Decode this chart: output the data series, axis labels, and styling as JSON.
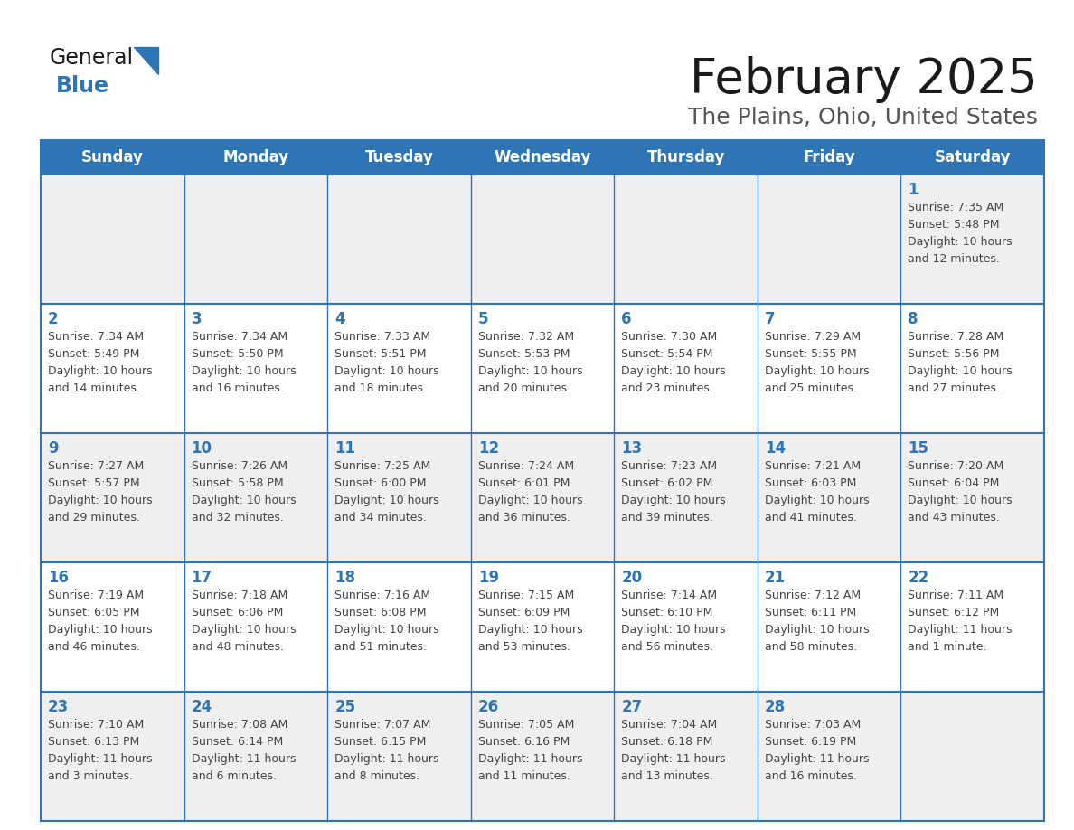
{
  "title": "February 2025",
  "subtitle": "The Plains, Ohio, United States",
  "header_bg": "#2E75B6",
  "header_text_color": "#FFFFFF",
  "cell_bg_light": "#EFEFEF",
  "cell_bg_white": "#FFFFFF",
  "border_color": "#2E75B6",
  "day_headers": [
    "Sunday",
    "Monday",
    "Tuesday",
    "Wednesday",
    "Thursday",
    "Friday",
    "Saturday"
  ],
  "title_color": "#1a1a1a",
  "subtitle_color": "#555555",
  "day_num_color": "#2E75B6",
  "cell_text_color": "#444444",
  "logo_general_color": "#1a1a1a",
  "logo_blue_color": "#2E75B6",
  "weeks": [
    [
      {
        "day": "",
        "info": ""
      },
      {
        "day": "",
        "info": ""
      },
      {
        "day": "",
        "info": ""
      },
      {
        "day": "",
        "info": ""
      },
      {
        "day": "",
        "info": ""
      },
      {
        "day": "",
        "info": ""
      },
      {
        "day": "1",
        "info": "Sunrise: 7:35 AM\nSunset: 5:48 PM\nDaylight: 10 hours\nand 12 minutes."
      }
    ],
    [
      {
        "day": "2",
        "info": "Sunrise: 7:34 AM\nSunset: 5:49 PM\nDaylight: 10 hours\nand 14 minutes."
      },
      {
        "day": "3",
        "info": "Sunrise: 7:34 AM\nSunset: 5:50 PM\nDaylight: 10 hours\nand 16 minutes."
      },
      {
        "day": "4",
        "info": "Sunrise: 7:33 AM\nSunset: 5:51 PM\nDaylight: 10 hours\nand 18 minutes."
      },
      {
        "day": "5",
        "info": "Sunrise: 7:32 AM\nSunset: 5:53 PM\nDaylight: 10 hours\nand 20 minutes."
      },
      {
        "day": "6",
        "info": "Sunrise: 7:30 AM\nSunset: 5:54 PM\nDaylight: 10 hours\nand 23 minutes."
      },
      {
        "day": "7",
        "info": "Sunrise: 7:29 AM\nSunset: 5:55 PM\nDaylight: 10 hours\nand 25 minutes."
      },
      {
        "day": "8",
        "info": "Sunrise: 7:28 AM\nSunset: 5:56 PM\nDaylight: 10 hours\nand 27 minutes."
      }
    ],
    [
      {
        "day": "9",
        "info": "Sunrise: 7:27 AM\nSunset: 5:57 PM\nDaylight: 10 hours\nand 29 minutes."
      },
      {
        "day": "10",
        "info": "Sunrise: 7:26 AM\nSunset: 5:58 PM\nDaylight: 10 hours\nand 32 minutes."
      },
      {
        "day": "11",
        "info": "Sunrise: 7:25 AM\nSunset: 6:00 PM\nDaylight: 10 hours\nand 34 minutes."
      },
      {
        "day": "12",
        "info": "Sunrise: 7:24 AM\nSunset: 6:01 PM\nDaylight: 10 hours\nand 36 minutes."
      },
      {
        "day": "13",
        "info": "Sunrise: 7:23 AM\nSunset: 6:02 PM\nDaylight: 10 hours\nand 39 minutes."
      },
      {
        "day": "14",
        "info": "Sunrise: 7:21 AM\nSunset: 6:03 PM\nDaylight: 10 hours\nand 41 minutes."
      },
      {
        "day": "15",
        "info": "Sunrise: 7:20 AM\nSunset: 6:04 PM\nDaylight: 10 hours\nand 43 minutes."
      }
    ],
    [
      {
        "day": "16",
        "info": "Sunrise: 7:19 AM\nSunset: 6:05 PM\nDaylight: 10 hours\nand 46 minutes."
      },
      {
        "day": "17",
        "info": "Sunrise: 7:18 AM\nSunset: 6:06 PM\nDaylight: 10 hours\nand 48 minutes."
      },
      {
        "day": "18",
        "info": "Sunrise: 7:16 AM\nSunset: 6:08 PM\nDaylight: 10 hours\nand 51 minutes."
      },
      {
        "day": "19",
        "info": "Sunrise: 7:15 AM\nSunset: 6:09 PM\nDaylight: 10 hours\nand 53 minutes."
      },
      {
        "day": "20",
        "info": "Sunrise: 7:14 AM\nSunset: 6:10 PM\nDaylight: 10 hours\nand 56 minutes."
      },
      {
        "day": "21",
        "info": "Sunrise: 7:12 AM\nSunset: 6:11 PM\nDaylight: 10 hours\nand 58 minutes."
      },
      {
        "day": "22",
        "info": "Sunrise: 7:11 AM\nSunset: 6:12 PM\nDaylight: 11 hours\nand 1 minute."
      }
    ],
    [
      {
        "day": "23",
        "info": "Sunrise: 7:10 AM\nSunset: 6:13 PM\nDaylight: 11 hours\nand 3 minutes."
      },
      {
        "day": "24",
        "info": "Sunrise: 7:08 AM\nSunset: 6:14 PM\nDaylight: 11 hours\nand 6 minutes."
      },
      {
        "day": "25",
        "info": "Sunrise: 7:07 AM\nSunset: 6:15 PM\nDaylight: 11 hours\nand 8 minutes."
      },
      {
        "day": "26",
        "info": "Sunrise: 7:05 AM\nSunset: 6:16 PM\nDaylight: 11 hours\nand 11 minutes."
      },
      {
        "day": "27",
        "info": "Sunrise: 7:04 AM\nSunset: 6:18 PM\nDaylight: 11 hours\nand 13 minutes."
      },
      {
        "day": "28",
        "info": "Sunrise: 7:03 AM\nSunset: 6:19 PM\nDaylight: 11 hours\nand 16 minutes."
      },
      {
        "day": "",
        "info": ""
      }
    ]
  ]
}
